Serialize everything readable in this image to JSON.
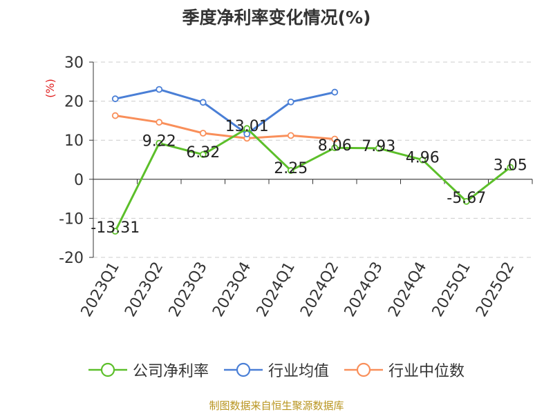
{
  "chart_data": {
    "type": "line",
    "title": "季度净利率变化情况(%)",
    "ylabel": "(%)",
    "categories": [
      "2023Q1",
      "2023Q2",
      "2023Q3",
      "2023Q4",
      "2024Q1",
      "2024Q2",
      "2024Q3",
      "2024Q4",
      "2025Q1",
      "2025Q2"
    ],
    "ylim": [
      -20,
      30
    ],
    "yticks": [
      -20,
      -10,
      0,
      10,
      20,
      30
    ],
    "grid": true,
    "legend_position": "bottom",
    "series": [
      {
        "name": "公司净利率",
        "color": "#5cbf2a",
        "values": [
          -13.31,
          9.22,
          6.32,
          13.01,
          2.25,
          8.06,
          7.93,
          4.96,
          -5.67,
          3.05
        ],
        "labels": [
          "-13.31",
          "9.22",
          "6.32",
          "13.01",
          "2.25",
          "8.06",
          "7.93",
          "4.96",
          "-5.67",
          "3.05"
        ]
      },
      {
        "name": "行业均值",
        "color": "#4a7fd6",
        "values": [
          20.6,
          23.0,
          19.7,
          11.6,
          19.8,
          22.3,
          null,
          null,
          null,
          null
        ]
      },
      {
        "name": "行业中位数",
        "color": "#f98f5a",
        "values": [
          16.3,
          14.6,
          11.8,
          10.5,
          11.2,
          10.3,
          null,
          null,
          null,
          null
        ]
      }
    ]
  },
  "source": "制图数据来自恒生聚源数据库"
}
